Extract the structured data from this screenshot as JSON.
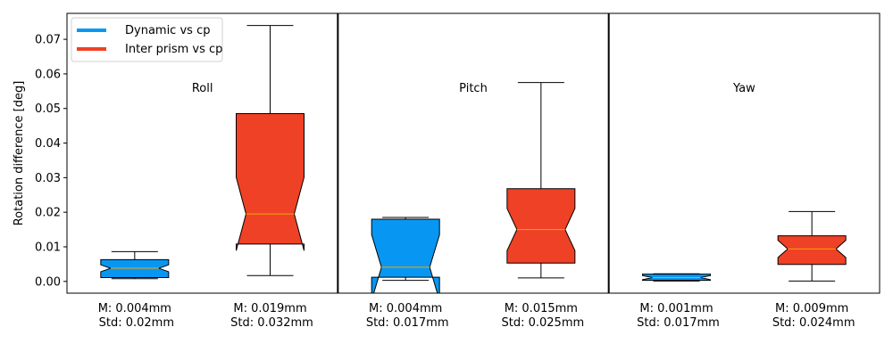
{
  "chart_data": {
    "type": "boxplot",
    "notched": true,
    "ylabel": "Rotation difference [deg]",
    "ylim": [
      -0.0034,
      0.0775
    ],
    "yticks": [
      0.0,
      0.01,
      0.02,
      0.03,
      0.04,
      0.05,
      0.06,
      0.07
    ],
    "ytick_labels": [
      "0.00",
      "0.01",
      "0.02",
      "0.03",
      "0.04",
      "0.05",
      "0.06",
      "0.07"
    ],
    "legend": {
      "position": "top-left",
      "entries": [
        {
          "label": "Dynamic vs cp",
          "color": "#0797f2"
        },
        {
          "label": "Inter prism vs cp",
          "color": "#ef4126"
        }
      ]
    },
    "panels": [
      {
        "name": "Roll"
      },
      {
        "name": "Pitch"
      },
      {
        "name": "Yaw"
      }
    ],
    "boxes": [
      {
        "panel": 0,
        "series": "Dynamic vs cp",
        "color": "#0797f2",
        "whislo": 0.0008,
        "q1": 0.0011,
        "notchlo": 0.0028,
        "med": 0.0038,
        "notchhi": 0.0048,
        "q3": 0.0063,
        "whishi": 0.0086,
        "label_line1": "M: 0.004mm",
        "label_line2": "Std: 0.02mm"
      },
      {
        "panel": 0,
        "series": "Inter prism vs cp",
        "color": "#ef4126",
        "whislo": 0.0017,
        "q1": 0.0108,
        "notchlo": 0.0089,
        "med": 0.0195,
        "notchhi": 0.0301,
        "q3": 0.0485,
        "whishi": 0.074,
        "label_line1": "M: 0.019mm",
        "label_line2": "Std: 0.032mm"
      },
      {
        "panel": 1,
        "series": "Dynamic vs cp",
        "color": "#0797f2",
        "whislo": 0.0003,
        "q1": 0.0012,
        "notchlo": -0.0055,
        "med": 0.0041,
        "notchhi": 0.0135,
        "q3": 0.018,
        "whishi": 0.0185,
        "label_line1": "M: 0.004mm",
        "label_line2": "Std: 0.017mm"
      },
      {
        "panel": 1,
        "series": "Inter prism vs cp",
        "color": "#ef4126",
        "whislo": 0.001,
        "q1": 0.0053,
        "notchlo": 0.0089,
        "med": 0.015,
        "notchhi": 0.0211,
        "q3": 0.0268,
        "whishi": 0.0575,
        "label_line1": "M: 0.015mm",
        "label_line2": "Std: 0.025mm"
      },
      {
        "panel": 2,
        "series": "Dynamic vs cp",
        "color": "#0797f2",
        "whislo": 0.0001,
        "q1": 0.0003,
        "notchlo": 0.0005,
        "med": 0.0011,
        "notchhi": 0.0017,
        "q3": 0.0021,
        "whishi": 0.0022,
        "label_line1": "M: 0.001mm",
        "label_line2": "Std: 0.017mm"
      },
      {
        "panel": 2,
        "series": "Inter prism vs cp",
        "color": "#ef4126",
        "whislo": 0.0001,
        "q1": 0.0049,
        "notchlo": 0.0069,
        "med": 0.0094,
        "notchhi": 0.0119,
        "q3": 0.0132,
        "whishi": 0.0202,
        "label_line1": "M: 0.009mm",
        "label_line2": "Std: 0.024mm"
      }
    ],
    "median_color": "#f5a40a",
    "grid": false
  }
}
